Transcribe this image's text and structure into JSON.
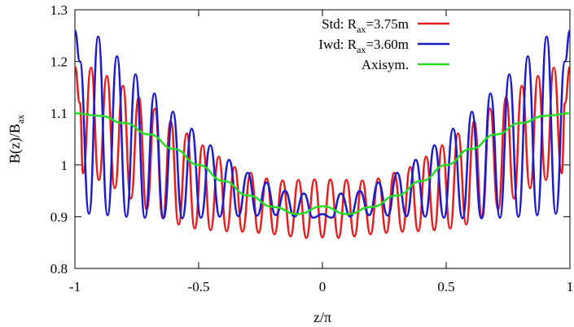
{
  "chart_data": {
    "type": "line",
    "xlabel": "z/π",
    "ylabel": {
      "main": "B(z)/B",
      "sub": "ax"
    },
    "xlim": [
      -1,
      1
    ],
    "ylim": [
      0.8,
      1.3
    ],
    "xticks": [
      {
        "value": -1,
        "label": "-1"
      },
      {
        "value": -0.5,
        "label": "-0.5"
      },
      {
        "value": 0,
        "label": "0"
      },
      {
        "value": 0.5,
        "label": "0.5"
      },
      {
        "value": 1,
        "label": "1"
      }
    ],
    "yticks": [
      {
        "value": 0.8,
        "label": "0.8"
      },
      {
        "value": 0.9,
        "label": "0.9"
      },
      {
        "value": 1.0,
        "label": "1"
      },
      {
        "value": 1.1,
        "label": "1.1"
      },
      {
        "value": 1.2,
        "label": "1.2"
      },
      {
        "value": 1.3,
        "label": "1.3"
      }
    ],
    "grid": false,
    "legend_position": "top-right",
    "series": [
      {
        "legend": {
          "prefix": "Std: R",
          "sub": "ax",
          "suffix": "=3.75m"
        },
        "color": "#e81c1c",
        "x": [
          -1.0,
          -0.98,
          -0.967,
          -0.935,
          -0.903,
          -0.871,
          -0.839,
          -0.806,
          -0.774,
          -0.742,
          -0.71,
          -0.677,
          -0.645,
          -0.613,
          -0.581,
          -0.548,
          -0.516,
          -0.484,
          -0.452,
          -0.419,
          -0.387,
          -0.355,
          -0.323,
          -0.29,
          -0.258,
          -0.226,
          -0.194,
          -0.161,
          -0.129,
          -0.097,
          -0.065,
          -0.032,
          0.0,
          0.032,
          0.065,
          0.097,
          0.129,
          0.161,
          0.194,
          0.226,
          0.258,
          0.29,
          0.323,
          0.355,
          0.387,
          0.419,
          0.452,
          0.484,
          0.516,
          0.548,
          0.581,
          0.613,
          0.645,
          0.677,
          0.71,
          0.742,
          0.774,
          0.806,
          0.839,
          0.871,
          0.903,
          0.935,
          0.967,
          0.98,
          1.0
        ],
        "y": [
          1.19,
          1.12,
          0.984,
          1.188,
          0.971,
          1.172,
          0.955,
          1.153,
          0.935,
          1.131,
          0.914,
          1.109,
          0.897,
          1.085,
          0.885,
          1.061,
          0.877,
          1.038,
          0.874,
          1.016,
          0.872,
          0.996,
          0.871,
          0.985,
          0.869,
          0.974,
          0.866,
          0.97,
          0.862,
          0.971,
          0.859,
          0.972,
          0.86,
          0.972,
          0.859,
          0.971,
          0.862,
          0.97,
          0.866,
          0.974,
          0.869,
          0.985,
          0.871,
          0.996,
          0.872,
          1.016,
          0.874,
          1.038,
          0.877,
          1.061,
          0.885,
          1.085,
          0.897,
          1.109,
          0.914,
          1.131,
          0.935,
          1.153,
          0.955,
          1.172,
          0.971,
          1.188,
          0.984,
          1.12,
          1.19
        ]
      },
      {
        "legend": {
          "prefix": "Iwd: R",
          "sub": "ax",
          "suffix": "=3.60m"
        },
        "color": "#1a1acf",
        "x": [
          -1.0,
          -0.98,
          -0.943,
          -0.906,
          -0.868,
          -0.83,
          -0.792,
          -0.755,
          -0.717,
          -0.679,
          -0.642,
          -0.604,
          -0.566,
          -0.528,
          -0.491,
          -0.453,
          -0.415,
          -0.377,
          -0.34,
          -0.302,
          -0.264,
          -0.226,
          -0.189,
          -0.151,
          -0.113,
          -0.075,
          -0.038,
          0.0,
          0.038,
          0.075,
          0.113,
          0.151,
          0.189,
          0.226,
          0.264,
          0.302,
          0.34,
          0.377,
          0.415,
          0.453,
          0.491,
          0.528,
          0.566,
          0.604,
          0.642,
          0.679,
          0.717,
          0.755,
          0.792,
          0.83,
          0.868,
          0.906,
          0.943,
          0.98,
          1.0
        ],
        "y": [
          1.26,
          1.2,
          0.906,
          1.248,
          0.903,
          1.21,
          0.9,
          1.175,
          0.898,
          1.138,
          0.897,
          1.103,
          0.897,
          1.07,
          0.898,
          1.038,
          0.9,
          1.01,
          0.901,
          0.985,
          0.902,
          0.966,
          0.903,
          0.95,
          0.9,
          0.945,
          0.898,
          0.905,
          0.898,
          0.945,
          0.9,
          0.95,
          0.903,
          0.966,
          0.902,
          0.985,
          0.901,
          1.01,
          0.9,
          1.038,
          0.898,
          1.07,
          0.897,
          1.103,
          0.897,
          1.138,
          0.898,
          1.175,
          0.9,
          1.21,
          0.903,
          1.248,
          0.906,
          1.2,
          1.26
        ]
      },
      {
        "legend": {
          "prefix": "Axisym.",
          "sub": "",
          "suffix": ""
        },
        "color": "#22dd22",
        "x": [
          -1.0,
          -0.9,
          -0.8,
          -0.7,
          -0.6,
          -0.5,
          -0.4,
          -0.3,
          -0.2,
          -0.1,
          0.0,
          0.1,
          0.2,
          0.3,
          0.4,
          0.5,
          0.6,
          0.7,
          0.8,
          0.9,
          1.0
        ],
        "y": [
          1.1,
          1.095,
          1.081,
          1.059,
          1.031,
          1.0,
          0.969,
          0.941,
          0.919,
          0.905,
          0.92,
          0.905,
          0.919,
          0.941,
          0.969,
          1.0,
          1.031,
          1.059,
          1.081,
          1.095,
          1.1
        ]
      }
    ]
  }
}
